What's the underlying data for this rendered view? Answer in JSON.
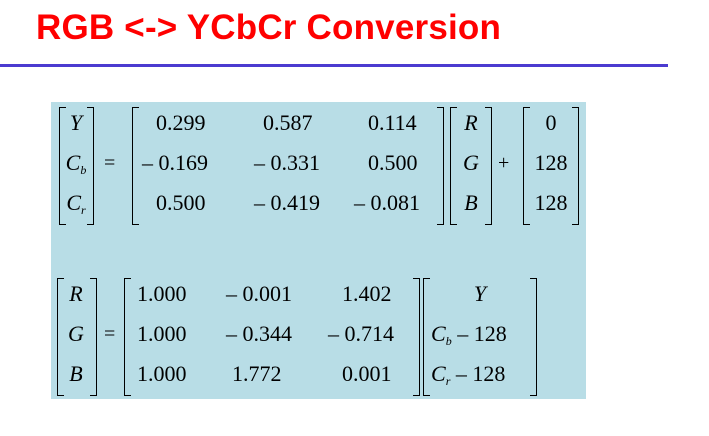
{
  "title": "RGB <-> YCbCr Conversion",
  "forward": {
    "lhs": [
      {
        "main": "Y",
        "sub": ""
      },
      {
        "main": "C",
        "sub": "b"
      },
      {
        "main": "C",
        "sub": "r"
      }
    ],
    "equals": "=",
    "matrix": [
      [
        "0.299",
        "0.587",
        "0.114"
      ],
      [
        "– 0.169",
        "– 0.331",
        "0.500"
      ],
      [
        "0.500",
        "– 0.419",
        "– 0.081"
      ]
    ],
    "rgb": [
      "R",
      "G",
      "B"
    ],
    "plus": "+",
    "offset": [
      "0",
      "128",
      "128"
    ]
  },
  "inverse": {
    "lhs": [
      "R",
      "G",
      "B"
    ],
    "equals": "=",
    "matrix": [
      [
        "1.000",
        "– 0.001",
        "1.402"
      ],
      [
        "1.000",
        "– 0.344",
        "– 0.714"
      ],
      [
        "1.000",
        "1.772",
        "0.001"
      ]
    ],
    "ycc": [
      {
        "main": "Y",
        "sub": "",
        "rest": ""
      },
      {
        "main": "C",
        "sub": "b",
        "rest": " – 128"
      },
      {
        "main": "C",
        "sub": "r",
        "rest": " – 128"
      }
    ]
  }
}
